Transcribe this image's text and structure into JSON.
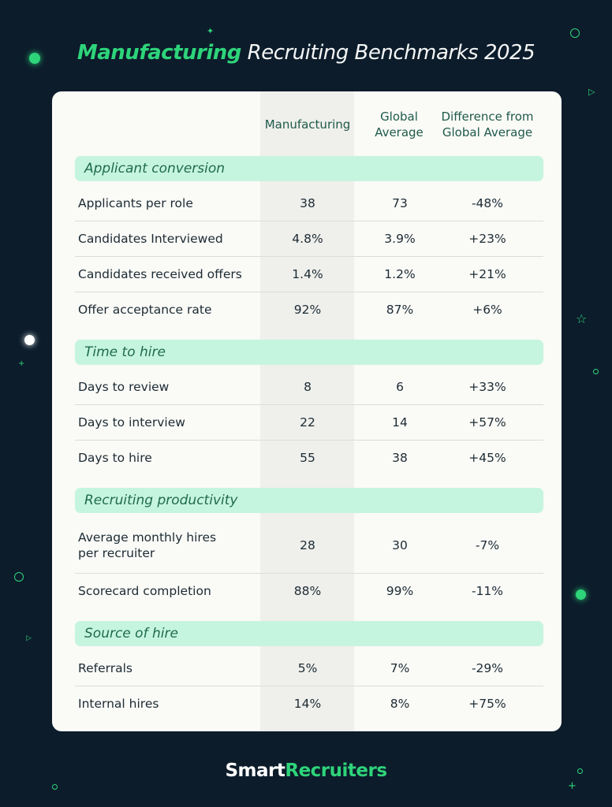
{
  "title": {
    "highlight": "Manufacturing",
    "rest": " Recruiting Benchmarks 2025"
  },
  "columns": [
    "Manufacturing",
    "Global Average",
    "Difference from Global Average"
  ],
  "columns_lines": [
    [
      "Manufacturing"
    ],
    [
      "Global",
      "Average"
    ],
    [
      "Difference from",
      "Global Average"
    ]
  ],
  "sections": [
    {
      "title": "Applicant conversion",
      "rows": [
        {
          "label": "Applicants per role",
          "manufacturing": "38",
          "global": "73",
          "diff": "-48%"
        },
        {
          "label": "Candidates Interviewed",
          "manufacturing": "4.8%",
          "global": "3.9%",
          "diff": "+23%"
        },
        {
          "label": "Candidates received offers",
          "manufacturing": "1.4%",
          "global": "1.2%",
          "diff": "+21%"
        },
        {
          "label": "Offer acceptance rate",
          "manufacturing": "92%",
          "global": "87%",
          "diff": "+6%"
        }
      ]
    },
    {
      "title": "Time to hire",
      "rows": [
        {
          "label": "Days to review",
          "manufacturing": "8",
          "global": "6",
          "diff": "+33%"
        },
        {
          "label": "Days to interview",
          "manufacturing": "22",
          "global": "14",
          "diff": "+57%"
        },
        {
          "label": "Days to hire",
          "manufacturing": "55",
          "global": "38",
          "diff": "+45%"
        }
      ]
    },
    {
      "title": "Recruiting productivity",
      "rows": [
        {
          "label": "Average monthly hires per recruiter",
          "manufacturing": "28",
          "global": "30",
          "diff": "-7%"
        },
        {
          "label": "Scorecard completion",
          "manufacturing": "88%",
          "global": "99%",
          "diff": "-11%"
        }
      ]
    },
    {
      "title": "Source of hire",
      "rows": [
        {
          "label": "Referrals",
          "manufacturing": "5%",
          "global": "7%",
          "diff": "-29%"
        },
        {
          "label": "Internal hires",
          "manufacturing": "14%",
          "global": "8%",
          "diff": "+75%"
        }
      ]
    }
  ],
  "logo": {
    "part1": "Smart",
    "part2": "Recruiters"
  },
  "colors": {
    "background": "#0c1c2b",
    "accent": "#2ed47a",
    "section_bar": "#c6f5df",
    "card": "#fafaf7"
  }
}
